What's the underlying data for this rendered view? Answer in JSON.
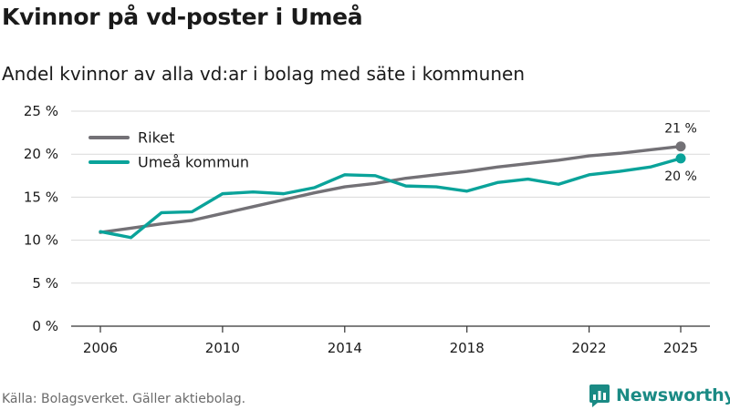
{
  "header": {
    "title": "Kvinnor på vd-poster i Umeå",
    "subtitle": "Andel kvinnor av alla vd:ar i bolag med säte i kommunen"
  },
  "footer": {
    "source": "Källa: Bolagsverket. Gäller aktiebolag.",
    "brand": "Newsworthy"
  },
  "colors": {
    "riket": "#737176",
    "umea": "#0aa39a",
    "grid": "#d9d9d9",
    "axis": "#333333"
  },
  "chart_data": {
    "type": "line",
    "title": "Kvinnor på vd-poster i Umeå",
    "xlabel": "",
    "ylabel": "",
    "xlim": [
      2006,
      2025
    ],
    "ylim": [
      0,
      25
    ],
    "grid": true,
    "legend_position": "top-left",
    "x_ticks": [
      {
        "value": 2006,
        "label": "2006"
      },
      {
        "value": 2010,
        "label": "2010"
      },
      {
        "value": 2014,
        "label": "2014"
      },
      {
        "value": 2018,
        "label": "2018"
      },
      {
        "value": 2022,
        "label": "2022"
      },
      {
        "value": 2025,
        "label": "2025"
      }
    ],
    "y_ticks": [
      {
        "value": 0,
        "label": "0 %"
      },
      {
        "value": 5,
        "label": "5 %"
      },
      {
        "value": 10,
        "label": "10 %"
      },
      {
        "value": 15,
        "label": "15 %"
      },
      {
        "value": 20,
        "label": "20 %"
      },
      {
        "value": 25,
        "label": "25 %"
      }
    ],
    "x": [
      2006,
      2007,
      2008,
      2009,
      2010,
      2011,
      2012,
      2013,
      2014,
      2015,
      2016,
      2017,
      2018,
      2019,
      2020,
      2021,
      2022,
      2023,
      2024,
      2025
    ],
    "series": [
      {
        "name": "Riket",
        "color_key": "riket",
        "values": [
          10.9,
          11.4,
          11.9,
          12.3,
          13.1,
          13.9,
          14.7,
          15.5,
          16.2,
          16.6,
          17.2,
          17.6,
          18.0,
          18.5,
          18.9,
          19.3,
          19.8,
          20.1,
          20.5,
          20.9
        ],
        "end_label": "21 %",
        "end_label_position": "above"
      },
      {
        "name": "Umeå kommun",
        "color_key": "umea",
        "values": [
          11.0,
          10.3,
          13.2,
          13.3,
          15.4,
          15.6,
          15.4,
          16.1,
          17.6,
          17.5,
          16.3,
          16.2,
          15.7,
          16.7,
          17.1,
          16.5,
          17.6,
          18.0,
          18.5,
          19.5
        ],
        "end_label": "20 %",
        "end_label_position": "below"
      }
    ]
  }
}
